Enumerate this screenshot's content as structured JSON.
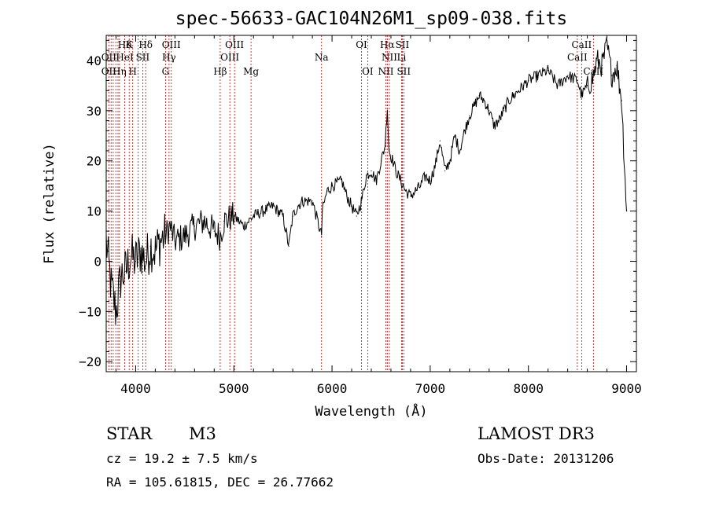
{
  "chart_data": {
    "type": "line",
    "title": "spec-56633-GAC104N26M1_sp09-038.fits",
    "xlabel": "Wavelength (Å)",
    "ylabel": "Flux (relative)",
    "xlim": [
      3700,
      9100
    ],
    "ylim": [
      -22,
      45
    ],
    "x_ticks": [
      4000,
      5000,
      6000,
      7000,
      8000,
      9000
    ],
    "x_tick_labels": [
      "4000",
      "5000",
      "6000",
      "7000",
      "8000",
      "9000"
    ],
    "y_ticks": [
      -20,
      -10,
      0,
      10,
      20,
      30,
      40
    ],
    "y_tick_labels": [
      "−20",
      "−10",
      "0",
      "10",
      "20",
      "30",
      "40"
    ],
    "series": [
      {
        "name": "flux",
        "x": [
          3700,
          3750,
          3800,
          3850,
          3900,
          3950,
          4000,
          4050,
          4100,
          4150,
          4200,
          4250,
          4300,
          4350,
          4400,
          4500,
          4600,
          4700,
          4800,
          4861,
          4900,
          5000,
          5100,
          5200,
          5300,
          5400,
          5500,
          5560,
          5600,
          5650,
          5700,
          5800,
          5893,
          5900,
          5950,
          6000,
          6100,
          6150,
          6200,
          6250,
          6300,
          6350,
          6400,
          6450,
          6500,
          6540,
          6563,
          6580,
          6620,
          6650,
          6700,
          6750,
          6800,
          6850,
          6900,
          6950,
          7000,
          7050,
          7100,
          7150,
          7200,
          7250,
          7300,
          7350,
          7400,
          7450,
          7500,
          7550,
          7600,
          7650,
          7700,
          7750,
          7800,
          7850,
          7900,
          7950,
          8000,
          8100,
          8200,
          8300,
          8400,
          8500,
          8542,
          8600,
          8650,
          8700,
          8750,
          8800,
          8850,
          8900,
          8950,
          9000
        ],
        "y": [
          4,
          -5,
          -10,
          -3,
          -2,
          1,
          0,
          2,
          0,
          3,
          2,
          4,
          5,
          7,
          4,
          5,
          7,
          8,
          6,
          5,
          8,
          9,
          7,
          9,
          10,
          11,
          9,
          3,
          9,
          11,
          12,
          12,
          5,
          10,
          14,
          15,
          16,
          13,
          11,
          9,
          12,
          17,
          18,
          16,
          20,
          23,
          31,
          22,
          20,
          18,
          16,
          14,
          13,
          14,
          15,
          17,
          16,
          19,
          24,
          18,
          20,
          25,
          22,
          26,
          29,
          31,
          33,
          32,
          30,
          27,
          28,
          30,
          32,
          33,
          34,
          35,
          36,
          37,
          38,
          35,
          37,
          36,
          33,
          35,
          36,
          40,
          39,
          43,
          37,
          39,
          32,
          10
        ]
      }
    ],
    "lines_top": [
      {
        "label": "Hδ",
        "wl": 3889
      },
      {
        "label": "K",
        "wl": 3934
      },
      {
        "label": "Hδ",
        "wl": 4102
      },
      {
        "label": "OIII",
        "wl": 4363
      },
      {
        "label": "OIII",
        "wl": 5007
      },
      {
        "label": "OI",
        "wl": 6300
      },
      {
        "label": "Hα",
        "wl": 6563
      },
      {
        "label": "SII",
        "wl": 6716
      },
      {
        "label": "CaII",
        "wl": 8542
      }
    ],
    "lines_mid": [
      {
        "label": "OII",
        "wl": 3727
      },
      {
        "label": "HeI",
        "wl": 3889
      },
      {
        "label": "SII",
        "wl": 4072
      },
      {
        "label": "Hγ",
        "wl": 4340
      },
      {
        "label": "OIII",
        "wl": 4959
      },
      {
        "label": "Na",
        "wl": 5893
      },
      {
        "label": "NII",
        "wl": 6584
      },
      {
        "label": "Li",
        "wl": 6708
      },
      {
        "label": "CaII",
        "wl": 8498
      }
    ],
    "lines_bot": [
      {
        "label": "OII",
        "wl": 3727
      },
      {
        "label": "Hη",
        "wl": 3835
      },
      {
        "label": "H",
        "wl": 3970
      },
      {
        "label": "G",
        "wl": 4304
      },
      {
        "label": "Hβ",
        "wl": 4861
      },
      {
        "label": "Mg",
        "wl": 5175
      },
      {
        "label": "OI",
        "wl": 6363
      },
      {
        "label": "NII",
        "wl": 6548
      },
      {
        "label": "SII",
        "wl": 6731
      },
      {
        "label": "CaII",
        "wl": 8662
      }
    ],
    "extra_line_wl": [
      3750,
      3771,
      3798,
      3820,
      3889,
      3934,
      3970,
      4026,
      4102,
      4304,
      4340,
      4363,
      4861,
      4959,
      5007,
      5175,
      5893,
      6300,
      6363,
      6548,
      6563,
      6584,
      6708,
      6716,
      6731,
      8498,
      8542,
      8662
    ]
  },
  "footer": {
    "object_class": "STAR",
    "subclass": "M3",
    "survey": "LAMOST DR3",
    "cz": "cz = 19.2 ± 7.5 km/s",
    "obs_date": "Obs-Date: 20131206",
    "coords": "RA = 105.61815, DEC =  26.77662"
  }
}
